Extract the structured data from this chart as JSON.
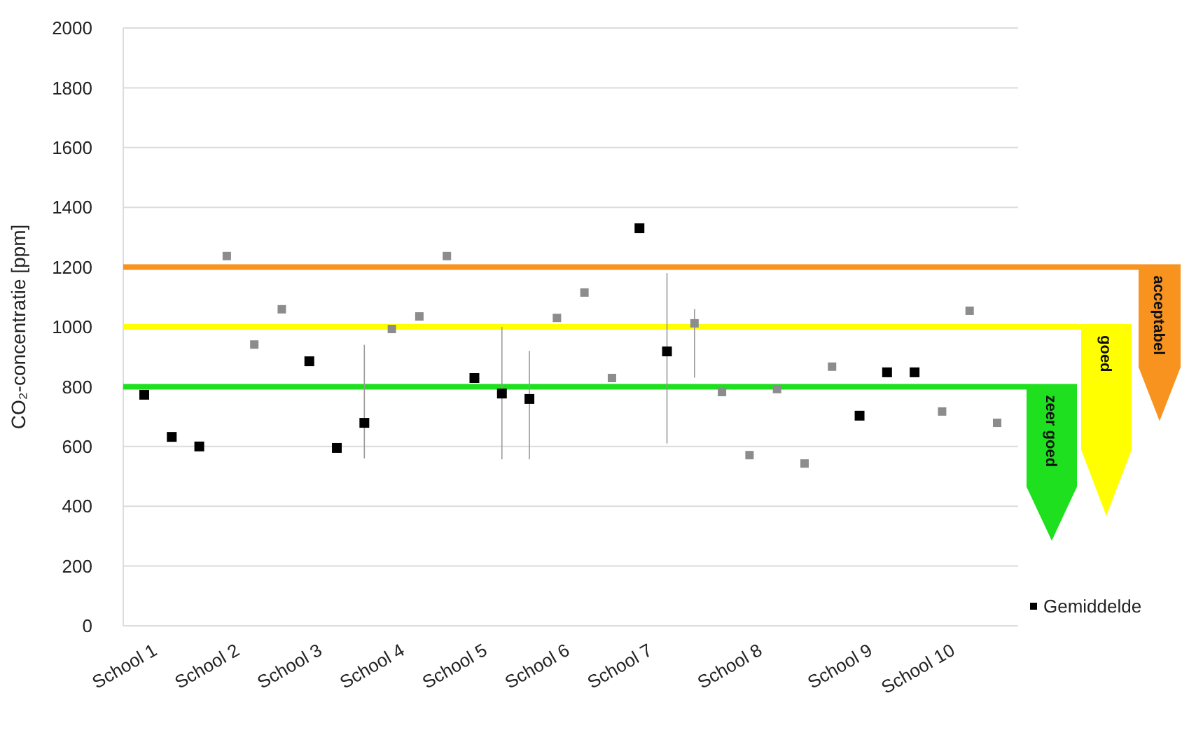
{
  "chart_data": {
    "type": "scatter",
    "ylabel": "CO₂-concentratie [ppm]",
    "categories": [
      "School 1",
      null,
      null,
      "School 2",
      null,
      null,
      "School 3",
      null,
      null,
      "School 4",
      null,
      null,
      "School 5",
      null,
      null,
      "School 6",
      null,
      null,
      "School 7",
      null,
      null,
      null,
      "School 8",
      null,
      null,
      null,
      "School 9",
      null,
      null,
      "School 10",
      null,
      null
    ],
    "series": [
      {
        "name": "Gemiddelde",
        "color": "#000000",
        "values": [
          773,
          632,
          600,
          null,
          null,
          null,
          885,
          595,
          679,
          null,
          null,
          null,
          829,
          777,
          759,
          null,
          null,
          null,
          1330,
          918,
          null,
          null,
          null,
          null,
          null,
          null,
          703,
          848,
          848,
          null,
          null,
          null
        ],
        "errors": [
          null,
          null,
          null,
          null,
          null,
          null,
          null,
          null,
          [
            560,
            940
          ],
          null,
          null,
          null,
          null,
          [
            557,
            1000
          ],
          [
            557,
            920
          ],
          null,
          null,
          null,
          null,
          [
            610,
            1180
          ],
          null,
          null,
          null,
          null,
          null,
          null,
          null,
          null,
          null,
          null,
          null,
          null
        ]
      },
      {
        "color": "#8c8c8c",
        "values": [
          null,
          null,
          null,
          1237,
          941,
          1059,
          null,
          null,
          null,
          993,
          1035,
          1237,
          null,
          null,
          null,
          1030,
          1115,
          829,
          null,
          null,
          1012,
          782,
          571,
          792,
          543,
          867,
          null,
          null,
          null,
          717,
          1054,
          679
        ],
        "errors": [
          null,
          null,
          null,
          null,
          null,
          null,
          null,
          null,
          null,
          null,
          null,
          null,
          null,
          null,
          null,
          null,
          null,
          null,
          null,
          null,
          [
            830,
            1060
          ],
          null,
          null,
          null,
          null,
          null,
          null,
          null,
          null,
          null,
          null,
          null
        ]
      }
    ],
    "ylim": [
      0,
      2000
    ],
    "yticks": [
      0,
      200,
      400,
      600,
      800,
      1000,
      1200,
      1400,
      1600,
      1800,
      2000
    ],
    "grid": "y",
    "marker": "square",
    "legend": "bottom right",
    "ref_lines": [
      {
        "axis": "y",
        "value": 800,
        "label": "zeer goed",
        "color": "#1ee01e"
      },
      {
        "axis": "y",
        "value": 1000,
        "label": "goed",
        "color": "#ffff00"
      },
      {
        "axis": "y",
        "value": 1200,
        "label": "acceptabel",
        "color": "#f7931e"
      }
    ]
  }
}
